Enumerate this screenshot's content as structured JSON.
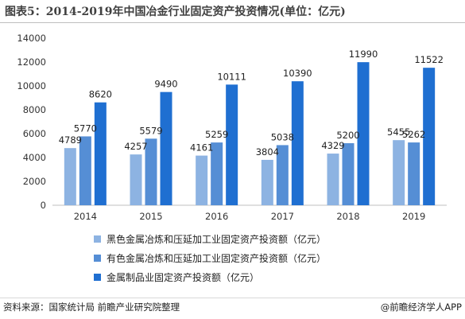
{
  "title": "图表5：2014-2019年中国冶金行业固定资产投资情况(单位：亿元)",
  "footer": {
    "source": "资料来源：国家统计局 前瞻产业研究院整理",
    "credit": "@前瞻经济学人APP"
  },
  "chart_data": {
    "type": "bar",
    "categories": [
      "2014",
      "2015",
      "2016",
      "2017",
      "2018",
      "2019"
    ],
    "series": [
      {
        "name": "黑色金属冶炼和压延加工业固定资产投资额（亿元）",
        "color": "#8db3e2",
        "values": [
          4789,
          4257,
          4161,
          3804,
          4329,
          5455
        ]
      },
      {
        "name": "有色金属冶炼和压延加工业固定资产投资额（亿元）",
        "color": "#558ed5",
        "values": [
          5770,
          5579,
          5259,
          5038,
          5200,
          5262
        ]
      },
      {
        "name": "金属制品业固定资产投资额（亿元）",
        "color": "#1f6fd1",
        "values": [
          8620,
          9490,
          10111,
          10390,
          11990,
          11522
        ]
      }
    ],
    "yticks": [
      "0",
      "2000",
      "4000",
      "6000",
      "8000",
      "10000",
      "12000",
      "14000"
    ],
    "ylim": [
      0,
      14000
    ],
    "legend_position": "bottom",
    "grid": false
  }
}
